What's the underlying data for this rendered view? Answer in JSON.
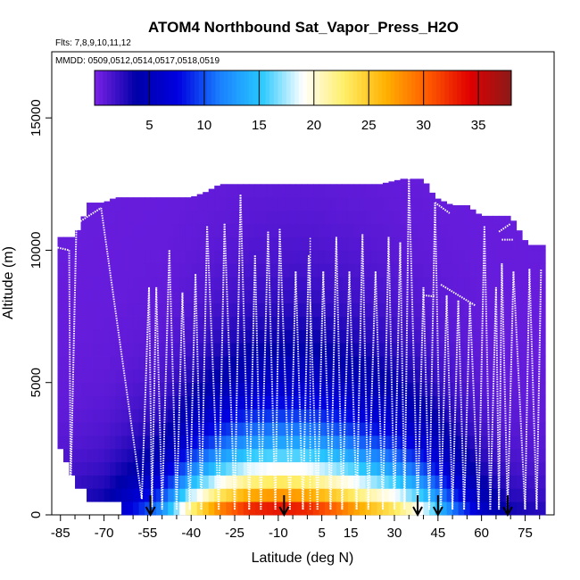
{
  "chart_data": {
    "type": "heatmap",
    "title": "ATOM4 Northbound Sat_Vapor_Press_H2O",
    "subtitle_flights": "Flts: 7,8,9,10,11,12",
    "subtitle_dates": "MMDD: 0509,0512,0514,0517,0518,0519",
    "xlabel": "Latitude (deg N)",
    "ylabel": "Altitude (m)",
    "xlim": [
      -88,
      85
    ],
    "ylim": [
      0,
      17500
    ],
    "x_ticks": [
      -85,
      -70,
      -55,
      -40,
      -25,
      -10,
      5,
      15,
      30,
      45,
      60,
      75
    ],
    "y_ticks": [
      0,
      5000,
      10000,
      15000
    ],
    "colorbar": {
      "range": [
        0,
        38
      ],
      "ticks": [
        5,
        10,
        15,
        20,
        25,
        30,
        35
      ],
      "colors": [
        "#7b22e6",
        "#0000a8",
        "#0000e0",
        "#1a7fff",
        "#27c8ff",
        "#ffffff",
        "#ffee66",
        "#ffb000",
        "#ff5a00",
        "#e00000",
        "#8b1a1a"
      ]
    },
    "ceiling": [
      [
        -86,
        10500
      ],
      [
        -80,
        10500
      ],
      [
        -75,
        11800
      ],
      [
        -70,
        11800
      ],
      [
        -66,
        12000
      ],
      [
        -60,
        12000
      ],
      [
        -40,
        12000
      ],
      [
        -35,
        12200
      ],
      [
        -30,
        12500
      ],
      [
        -20,
        12500
      ],
      [
        -5,
        12500
      ],
      [
        10,
        12500
      ],
      [
        25,
        12500
      ],
      [
        33,
        12700
      ],
      [
        40,
        12700
      ],
      [
        44,
        12000
      ],
      [
        50,
        11700
      ],
      [
        55,
        11700
      ],
      [
        60,
        11300
      ],
      [
        70,
        11300
      ],
      [
        76,
        10200
      ],
      [
        82,
        10200
      ]
    ],
    "floor": [
      [
        -86,
        2800
      ],
      [
        -83,
        2300
      ],
      [
        -80,
        1500
      ],
      [
        -76,
        1000
      ],
      [
        -70,
        700
      ],
      [
        -65,
        500
      ],
      [
        -60,
        300
      ],
      [
        -55,
        200
      ],
      [
        -50,
        100
      ],
      [
        -40,
        0
      ],
      [
        40,
        0
      ],
      [
        50,
        100
      ],
      [
        60,
        200
      ],
      [
        66,
        300
      ],
      [
        72,
        200
      ],
      [
        76,
        100
      ],
      [
        82,
        100
      ]
    ],
    "moisture_peak": [
      [
        -88,
        2
      ],
      [
        -70,
        4
      ],
      [
        -60,
        8
      ],
      [
        -50,
        13
      ],
      [
        -40,
        24
      ],
      [
        -30,
        31
      ],
      [
        -20,
        35
      ],
      [
        -10,
        36
      ],
      [
        0,
        35
      ],
      [
        10,
        32
      ],
      [
        20,
        28
      ],
      [
        30,
        25
      ],
      [
        40,
        20
      ],
      [
        50,
        12
      ],
      [
        60,
        6
      ],
      [
        70,
        3
      ],
      [
        85,
        2
      ]
    ],
    "moisture_scale_height_m": [
      [
        -88,
        1800
      ],
      [
        -50,
        2000
      ],
      [
        -20,
        2600
      ],
      [
        0,
        2700
      ],
      [
        20,
        2600
      ],
      [
        40,
        2300
      ],
      [
        60,
        2000
      ],
      [
        85,
        1800
      ]
    ],
    "flight_track_profiles": [
      {
        "lat_bottom": -87.3,
        "alt_bottom": 1200,
        "lat_top": -86.5,
        "alt_top": 10100
      },
      {
        "lat_bottom": -86,
        "alt_bottom": 10100,
        "lat_top": -82,
        "alt_top": 10000
      },
      {
        "lat_bottom": -81.5,
        "alt_bottom": 1000,
        "lat_top": -79.5,
        "alt_top": 11000
      },
      {
        "lat_bottom": -79.5,
        "alt_bottom": 11000,
        "lat_top": -71,
        "alt_top": 11600
      },
      {
        "lat_bottom": -57,
        "alt_bottom": 600,
        "lat_top": -54.5,
        "alt_top": 8600
      },
      {
        "lat_bottom": -53.5,
        "alt_bottom": 300,
        "lat_top": -52,
        "alt_top": 8600
      },
      {
        "lat_bottom": -50,
        "alt_bottom": 200,
        "lat_top": -47.5,
        "alt_top": 10000
      },
      {
        "lat_bottom": -45,
        "alt_bottom": 200,
        "lat_top": -43,
        "alt_top": 8400
      },
      {
        "lat_bottom": -40.5,
        "alt_bottom": 200,
        "lat_top": -38.5,
        "alt_top": 9100
      },
      {
        "lat_bottom": -36.5,
        "alt_bottom": 200,
        "lat_top": -34.5,
        "alt_top": 10900
      },
      {
        "lat_bottom": -30.5,
        "alt_bottom": 200,
        "lat_top": -28.5,
        "alt_top": 11000
      },
      {
        "lat_bottom": -25,
        "alt_bottom": 200,
        "lat_top": -23,
        "alt_top": 12100
      },
      {
        "lat_bottom": -20,
        "alt_bottom": 200,
        "lat_top": -18,
        "alt_top": 9800
      },
      {
        "lat_bottom": -16,
        "alt_bottom": 200,
        "lat_top": -13.5,
        "alt_top": 10700
      },
      {
        "lat_bottom": -11,
        "alt_bottom": 200,
        "lat_top": -9.5,
        "alt_top": 10800
      },
      {
        "lat_bottom": -6,
        "alt_bottom": 200,
        "lat_top": -4,
        "alt_top": 9200
      },
      {
        "lat_bottom": -1.5,
        "alt_bottom": 200,
        "lat_top": 0.5,
        "alt_top": 9800
      },
      {
        "lat_bottom": 3.5,
        "alt_bottom": 200,
        "lat_top": 5.5,
        "alt_top": 9200
      },
      {
        "lat_bottom": 8,
        "alt_bottom": 200,
        "lat_top": 10,
        "alt_top": 10500
      },
      {
        "lat_bottom": 12,
        "alt_bottom": 200,
        "lat_top": 14.5,
        "alt_top": 9200
      },
      {
        "lat_bottom": 17,
        "alt_bottom": 200,
        "lat_top": 19,
        "alt_top": 10600
      },
      {
        "lat_bottom": 21,
        "alt_bottom": 200,
        "lat_top": 23.5,
        "alt_top": 9200
      },
      {
        "lat_bottom": 26,
        "alt_bottom": 200,
        "lat_top": 28,
        "alt_top": 10500
      },
      {
        "lat_bottom": 30,
        "alt_bottom": 200,
        "lat_top": 32,
        "alt_top": 10300
      },
      {
        "lat_bottom": 33.5,
        "alt_bottom": 200,
        "lat_top": 35,
        "alt_top": 12800
      },
      {
        "lat_bottom": 38,
        "alt_bottom": 200,
        "lat_top": 40,
        "alt_top": 8600
      },
      {
        "lat_bottom": 42,
        "alt_bottom": 200,
        "lat_top": 44,
        "alt_top": 11800
      },
      {
        "lat_bottom": 46,
        "alt_bottom": 200,
        "lat_top": 48,
        "alt_top": 8300
      },
      {
        "lat_bottom": 50,
        "alt_bottom": 200,
        "lat_top": 52,
        "alt_top": 8100
      },
      {
        "lat_bottom": 54,
        "alt_bottom": 200,
        "lat_top": 56,
        "alt_top": 8000
      },
      {
        "lat_bottom": 59,
        "alt_bottom": 200,
        "lat_top": 61,
        "alt_top": 10900
      },
      {
        "lat_bottom": 63,
        "alt_bottom": 200,
        "lat_top": 65,
        "alt_top": 8600
      },
      {
        "lat_bottom": 66,
        "alt_bottom": 200,
        "lat_top": 67,
        "alt_top": 9500
      },
      {
        "lat_bottom": 69,
        "alt_bottom": 200,
        "lat_top": 71,
        "alt_top": 9200
      },
      {
        "lat_bottom": 75,
        "alt_bottom": 200,
        "lat_top": 76.5,
        "alt_top": 9300
      },
      {
        "lat_bottom": 79,
        "alt_bottom": 200,
        "lat_top": 80.5,
        "alt_top": 9300
      }
    ],
    "flight_track_level_legs": [
      {
        "lat1": 40,
        "alt1": 8300,
        "lat2": 44,
        "alt2": 8250
      },
      {
        "lat1": 44,
        "alt1": 11800,
        "lat2": 49,
        "alt2": 11400
      },
      {
        "lat1": 46,
        "alt1": 8700,
        "lat2": 58,
        "alt2": 7900
      },
      {
        "lat1": 66,
        "alt1": 10700,
        "lat2": 70,
        "alt2": 11000
      },
      {
        "lat1": 67,
        "alt1": 10400,
        "lat2": 71,
        "alt2": 10400
      }
    ],
    "vertical_sounding_lat": 1,
    "arrow_markers_lat": [
      -54,
      -8,
      38,
      45,
      69
    ]
  }
}
